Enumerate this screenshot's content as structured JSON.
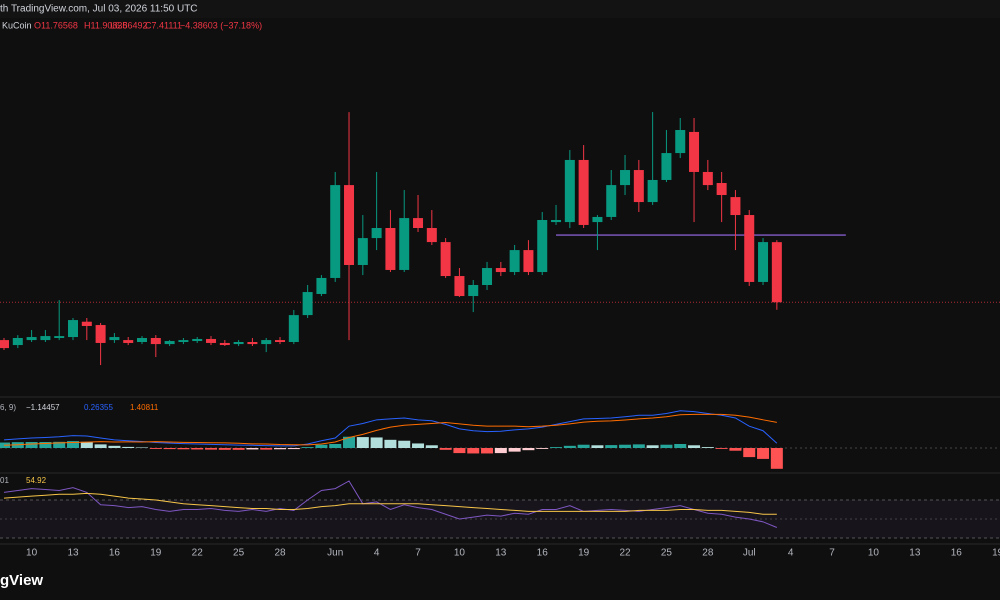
{
  "header": {
    "source": "th TradingView.com, Jul 03, 2026 11:50 UTC",
    "exchange": "KuCoin",
    "open": "O11.76568",
    "high": "H11.90835",
    "low": "L6.86492",
    "close": "C7.41111",
    "change": "−4.38603 (−37.18%)"
  },
  "macd_legend": {
    "params": "6, 9)",
    "histogram": "−1.14457",
    "macd": "0.26355",
    "signal": "1.40811"
  },
  "rsi_legend": {
    "params": "01",
    "value": "54.92"
  },
  "footer": {
    "logo": "gView"
  },
  "chart_data": [
    {
      "type": "candlestick",
      "up_color": "#089981",
      "down_color": "#f23645",
      "x": [
        0,
        1,
        2,
        3,
        4,
        5,
        6,
        7,
        8,
        9,
        10,
        11,
        12,
        13,
        14,
        15,
        16,
        17,
        18,
        19,
        20,
        21,
        22,
        23,
        24,
        25,
        26,
        27,
        28,
        29,
        30,
        31,
        32,
        33,
        34,
        35,
        36,
        37,
        38,
        39,
        40,
        41,
        42,
        43,
        44,
        45,
        46,
        47,
        48,
        49,
        50,
        51,
        52,
        53,
        54,
        55,
        56
      ],
      "open": [
        4.67,
        4.31,
        4.67,
        4.67,
        4.82,
        4.89,
        6.0,
        5.76,
        4.67,
        4.67,
        4.53,
        4.82,
        4.38,
        4.53,
        4.6,
        4.75,
        4.46,
        4.38,
        4.53,
        4.38,
        4.67,
        4.53,
        6.48,
        8.01,
        9.17,
        15.9,
        10.11,
        12.06,
        12.79,
        9.75,
        13.51,
        12.79,
        11.77,
        9.31,
        7.86,
        8.66,
        9.89,
        9.6,
        11.19,
        9.6,
        13.22,
        13.22,
        17.72,
        13.22,
        13.59,
        15.9,
        16.99,
        14.67,
        16.27,
        18.22,
        19.75,
        16.85,
        16.05,
        15.03,
        13.73,
        8.88,
        11.76568
      ],
      "high": [
        4.82,
        5.03,
        5.4,
        5.4,
        7.57,
        6.27,
        6.27,
        5.91,
        5.18,
        4.89,
        4.96,
        5.03,
        4.67,
        4.82,
        4.89,
        4.96,
        4.67,
        4.67,
        4.82,
        4.82,
        4.89,
        6.85,
        8.66,
        9.38,
        16.85,
        21.19,
        13.73,
        16.85,
        14.09,
        15.54,
        15.18,
        14.09,
        12.06,
        9.89,
        9.02,
        10.33,
        10.33,
        11.56,
        11.91,
        13.95,
        14.46,
        18.44,
        18.8,
        13.73,
        16.99,
        18.08,
        17.72,
        21.19,
        19.89,
        20.76,
        20.76,
        17.72,
        16.85,
        15.54,
        14.09,
        12.06,
        11.90835
      ],
      "low": [
        3.95,
        4.09,
        4.53,
        4.53,
        4.67,
        4.67,
        4.67,
        2.86,
        4.46,
        4.31,
        4.38,
        3.44,
        4.24,
        4.38,
        4.46,
        4.31,
        4.24,
        4.24,
        4.24,
        3.8,
        4.38,
        4.38,
        6.27,
        7.86,
        8.88,
        4.67,
        9.38,
        11.19,
        9.6,
        9.6,
        12.5,
        11.56,
        9.17,
        7.79,
        6.7,
        8.3,
        9.31,
        9.38,
        9.38,
        9.38,
        13.01,
        12.79,
        12.79,
        11.19,
        13.37,
        15.18,
        13.95,
        14.46,
        16.12,
        17.86,
        13.22,
        15.54,
        13.22,
        11.19,
        8.59,
        8.66,
        6.86492
      ],
      "close": [
        4.09,
        4.82,
        4.89,
        4.96,
        4.96,
        6.12,
        5.69,
        4.46,
        4.89,
        4.46,
        4.82,
        4.38,
        4.6,
        4.67,
        4.75,
        4.46,
        4.31,
        4.53,
        4.38,
        4.67,
        4.53,
        6.48,
        8.15,
        9.17,
        15.9,
        10.11,
        12.06,
        12.79,
        9.75,
        13.51,
        12.79,
        11.77,
        9.31,
        7.86,
        8.66,
        9.89,
        9.6,
        11.19,
        9.6,
        13.37,
        13.37,
        17.72,
        13.01,
        13.59,
        15.9,
        16.99,
        14.67,
        16.27,
        18.22,
        19.89,
        16.85,
        15.9,
        15.18,
        13.73,
        8.88,
        11.77,
        7.41111
      ],
      "xlim": [
        -0.29,
        72.17
      ],
      "ylim": [
        0.69,
        29.31
      ],
      "xticks": [
        {
          "value": 2,
          "label": "10"
        },
        {
          "value": 5,
          "label": "13"
        },
        {
          "value": 8,
          "label": "16"
        },
        {
          "value": 11,
          "label": "19"
        },
        {
          "value": 14,
          "label": "22"
        },
        {
          "value": 17,
          "label": "25"
        },
        {
          "value": 20,
          "label": "28"
        },
        {
          "value": 24,
          "label": "Jun"
        },
        {
          "value": 27,
          "label": "4"
        },
        {
          "value": 30,
          "label": "7"
        },
        {
          "value": 33,
          "label": "10"
        },
        {
          "value": 36,
          "label": "13"
        },
        {
          "value": 39,
          "label": "16"
        },
        {
          "value": 42,
          "label": "19"
        },
        {
          "value": 45,
          "label": "22"
        },
        {
          "value": 48,
          "label": "25"
        },
        {
          "value": 51,
          "label": "28"
        },
        {
          "value": 54,
          "label": "Jul"
        },
        {
          "value": 57,
          "label": "4"
        },
        {
          "value": 60,
          "label": "7"
        },
        {
          "value": 63,
          "label": "10"
        },
        {
          "value": 66,
          "label": "13"
        },
        {
          "value": 69,
          "label": "16"
        },
        {
          "value": 72,
          "label": "19"
        }
      ],
      "hline": {
        "value": 12.28,
        "x_from": 40,
        "x_to": 61,
        "color": "#9c6cf0"
      }
    },
    {
      "type": "macd",
      "ylim": [
        -1.32,
        2.64
      ],
      "hist_colors": [
        "#26a69a",
        "#b2dfdb",
        "#ffcdd2",
        "#ff5252"
      ],
      "series": [
        {
          "name": "Histogram",
          "kind": "bar",
          "values": [
            0.3,
            0.32,
            0.33,
            0.33,
            0.34,
            0.38,
            0.34,
            0.2,
            0.12,
            0.06,
            0.03,
            -0.05,
            -0.06,
            -0.07,
            -0.08,
            -0.09,
            -0.1,
            -0.1,
            -0.08,
            -0.09,
            -0.07,
            -0.06,
            0.05,
            0.18,
            0.22,
            0.62,
            0.6,
            0.58,
            0.45,
            0.4,
            0.25,
            0.15,
            -0.1,
            -0.28,
            -0.3,
            -0.3,
            -0.28,
            -0.2,
            -0.12,
            -0.05,
            0.05,
            0.12,
            0.18,
            0.15,
            0.16,
            0.18,
            0.2,
            0.15,
            0.18,
            0.22,
            0.15,
            0.05,
            -0.05,
            -0.15,
            -0.5,
            -0.6,
            -1.14457
          ]
        },
        {
          "name": "MACD",
          "kind": "line",
          "color": "#2962ff",
          "values": [
            0.45,
            0.5,
            0.55,
            0.58,
            0.62,
            0.68,
            0.66,
            0.55,
            0.45,
            0.4,
            0.36,
            0.3,
            0.27,
            0.24,
            0.22,
            0.2,
            0.18,
            0.16,
            0.15,
            0.13,
            0.12,
            0.12,
            0.22,
            0.4,
            0.55,
            1.2,
            1.35,
            1.55,
            1.6,
            1.65,
            1.55,
            1.5,
            1.3,
            1.05,
            0.95,
            0.9,
            0.92,
            1.0,
            1.05,
            1.15,
            1.3,
            1.45,
            1.6,
            1.62,
            1.65,
            1.72,
            1.8,
            1.8,
            1.9,
            2.05,
            2.0,
            1.9,
            1.8,
            1.65,
            1.2,
            0.95,
            0.26355
          ]
        },
        {
          "name": "Signal",
          "kind": "line",
          "color": "#ff6d00",
          "values": [
            0.15,
            0.18,
            0.22,
            0.25,
            0.28,
            0.3,
            0.32,
            0.35,
            0.33,
            0.34,
            0.33,
            0.35,
            0.33,
            0.31,
            0.3,
            0.29,
            0.28,
            0.26,
            0.23,
            0.22,
            0.19,
            0.18,
            0.17,
            0.22,
            0.33,
            0.58,
            0.75,
            0.97,
            1.15,
            1.25,
            1.3,
            1.35,
            1.4,
            1.33,
            1.25,
            1.2,
            1.2,
            1.2,
            1.17,
            1.2,
            1.25,
            1.33,
            1.42,
            1.47,
            1.49,
            1.54,
            1.6,
            1.65,
            1.72,
            1.83,
            1.85,
            1.85,
            1.85,
            1.8,
            1.7,
            1.55,
            1.40811
          ]
        }
      ]
    },
    {
      "type": "line",
      "ylim": [
        22.6,
        96.3
      ],
      "bands": [
        30,
        70
      ],
      "midline": 50,
      "band_color": "#7e57c2",
      "series": [
        {
          "name": "RSI",
          "color": "#7e57c2",
          "values": [
            78,
            80,
            82,
            81,
            80,
            83,
            78,
            65,
            64,
            62,
            63,
            60,
            58,
            60,
            60,
            61,
            59,
            58,
            60,
            58,
            61,
            59,
            70,
            80,
            82,
            90,
            66,
            68,
            60,
            65,
            62,
            60,
            55,
            50,
            52,
            54,
            53,
            56,
            55,
            60,
            60,
            64,
            58,
            59,
            60,
            59,
            58,
            60,
            62,
            64,
            60,
            56,
            55,
            52,
            50,
            47,
            41
          ]
        },
        {
          "name": "RSI MA",
          "color": "#f7c548",
          "values": [
            72,
            73,
            74,
            75,
            76,
            76,
            77,
            76,
            74,
            72,
            71,
            70,
            68,
            66,
            65,
            64,
            63,
            62,
            61,
            61,
            60,
            60,
            61,
            63,
            64,
            66,
            66,
            66,
            66,
            66,
            66,
            65,
            64,
            63,
            62,
            61,
            60,
            59,
            58,
            58,
            58,
            58,
            58,
            58,
            58,
            58,
            59,
            59,
            59,
            60,
            60,
            59,
            59,
            58,
            57,
            55,
            54.92
          ]
        }
      ]
    }
  ]
}
